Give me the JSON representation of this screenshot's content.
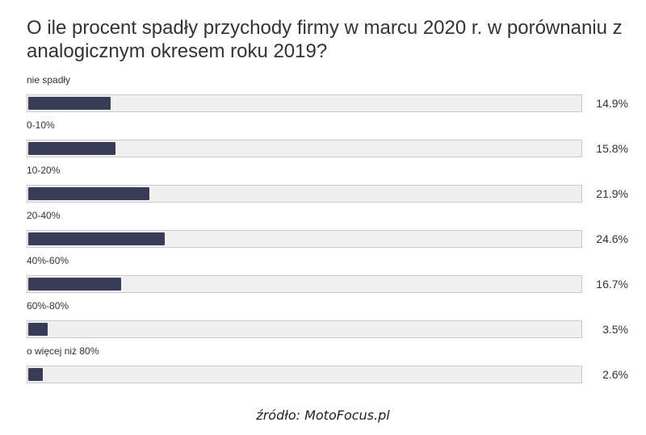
{
  "chart_data": {
    "type": "bar",
    "orientation": "horizontal",
    "title": "O ile procent spadły przychody firmy w marcu 2020 r. w porównaniu z analogicznym okresem roku 2019?",
    "categories": [
      "nie spadły",
      "0-10%",
      "10-20%",
      "20-40%",
      "40%-60%",
      "60%-80%",
      "o więcej niż 80%"
    ],
    "values": [
      14.9,
      15.8,
      21.9,
      24.6,
      16.7,
      3.5,
      2.6
    ],
    "value_labels": [
      "14.9%",
      "15.8%",
      "21.9%",
      "24.6%",
      "16.7%",
      "3.5%",
      "2.6%"
    ],
    "xlim": [
      0,
      100
    ],
    "bar_color": "#363d55",
    "track_color": "#f0f0f0",
    "grid": false,
    "legend": "none"
  },
  "source": "źródło: MotoFocus.pl"
}
